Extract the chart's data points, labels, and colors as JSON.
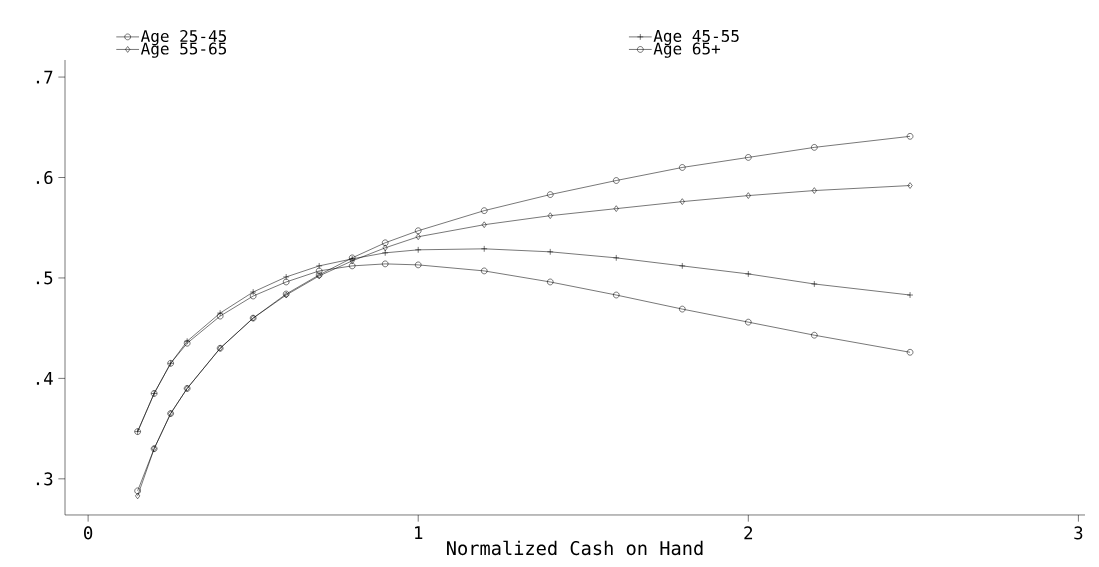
{
  "chart_data": {
    "type": "line",
    "xlabel": "Normalized Cash on Hand",
    "x": [
      0.15,
      0.2,
      0.25,
      0.3,
      0.4,
      0.5,
      0.6,
      0.7,
      0.8,
      0.9,
      1.0,
      1.2,
      1.4,
      1.6,
      1.8,
      2.0,
      2.2,
      2.49
    ],
    "series": [
      {
        "name": "Age 25-45",
        "color": "#000000",
        "marker": "circle",
        "values": [
          0.347,
          0.385,
          0.415,
          0.435,
          0.462,
          0.482,
          0.496,
          0.507,
          0.512,
          0.514,
          0.513,
          0.507,
          0.496,
          0.483,
          0.469,
          0.456,
          0.443,
          0.426
        ]
      },
      {
        "name": "Age 45-55",
        "color": "#000000",
        "marker": "cross",
        "values": [
          0.347,
          0.385,
          0.415,
          0.437,
          0.465,
          0.486,
          0.501,
          0.512,
          0.519,
          0.525,
          0.528,
          0.529,
          0.526,
          0.52,
          0.512,
          0.504,
          0.494,
          0.483
        ]
      },
      {
        "name": "Age 55-65",
        "color": "#000000",
        "marker": "diamond",
        "values": [
          0.283,
          0.33,
          0.365,
          0.39,
          0.43,
          0.46,
          0.483,
          0.502,
          0.517,
          0.53,
          0.541,
          0.553,
          0.562,
          0.569,
          0.576,
          0.582,
          0.587,
          0.592
        ]
      },
      {
        "name": "Age 65+",
        "color": "#000000",
        "marker": "circle",
        "values": [
          0.288,
          0.33,
          0.365,
          0.39,
          0.43,
          0.46,
          0.484,
          0.503,
          0.52,
          0.535,
          0.547,
          0.567,
          0.583,
          0.597,
          0.61,
          0.62,
          0.63,
          0.641
        ]
      }
    ],
    "xlim": [
      -0.07,
      3.02
    ],
    "ylim": [
      0.264,
      0.717
    ],
    "xticks": [
      0,
      1,
      2,
      3
    ],
    "yticks": [
      {
        "value": 0.3,
        "label": ".3"
      },
      {
        "value": 0.4,
        "label": ".4"
      },
      {
        "value": 0.5,
        "label": ".5"
      },
      {
        "value": 0.6,
        "label": ".6"
      },
      {
        "value": 0.7,
        "label": ".7"
      }
    ],
    "legend": "top",
    "grid": false,
    "line_style": "solid"
  }
}
